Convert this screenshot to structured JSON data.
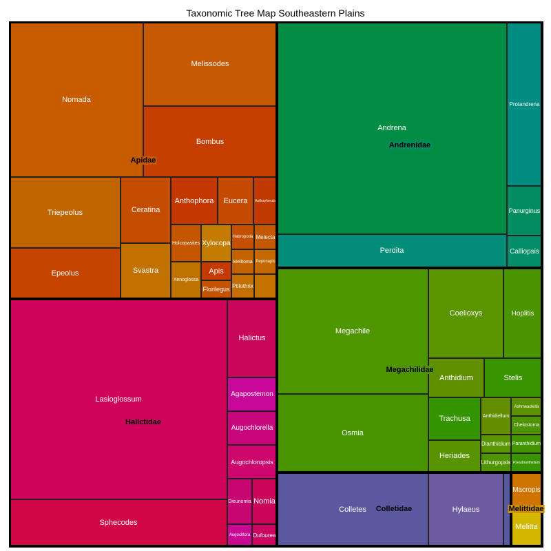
{
  "chart_data": {
    "type": "treemap",
    "title": "Taxonomic Tree Map Southeastern Plains",
    "families": [
      {
        "name": "Apidae",
        "color": "#c45a00",
        "genera": [
          {
            "name": "Nomada",
            "color": "#c85a00"
          },
          {
            "name": "Melissodes",
            "color": "#c55800"
          },
          {
            "name": "Bombus",
            "color": "#c43e00"
          },
          {
            "name": "Triepeolus",
            "color": "#c06400"
          },
          {
            "name": "Epeolus",
            "color": "#c44400"
          },
          {
            "name": "Ceratina",
            "color": "#c44c00"
          },
          {
            "name": "Svastra",
            "color": "#c17200"
          },
          {
            "name": "Anthophora",
            "color": "#c43800"
          },
          {
            "name": "Eucera",
            "color": "#c44a00"
          },
          {
            "name": "Anthophorula",
            "color": "#c03a00"
          },
          {
            "name": "Holcopasites",
            "color": "#c45600"
          },
          {
            "name": "Xenoglossa",
            "color": "#c07200"
          },
          {
            "name": "Xylocopa",
            "color": "#c47c00"
          },
          {
            "name": "Apis",
            "color": "#c43a00"
          },
          {
            "name": "Florilegus",
            "color": "#c45200"
          },
          {
            "name": "Habropoda",
            "color": "#c45000"
          },
          {
            "name": "Melecta",
            "color": "#c45800"
          },
          {
            "name": "Melitoma",
            "color": "#c46200"
          },
          {
            "name": "Peponapis",
            "color": "#c46800"
          },
          {
            "name": "Ptilothrix",
            "color": "#c46e00"
          },
          {
            "name": "",
            "color": "#c47200"
          }
        ]
      },
      {
        "name": "Andrenidae",
        "color": "#028c60",
        "genera": [
          {
            "name": "Andrena",
            "color": "#028c44"
          },
          {
            "name": "Perdita",
            "color": "#038c78"
          },
          {
            "name": "Protandrena",
            "color": "#008c80"
          },
          {
            "name": "Panurginus",
            "color": "#028c60"
          },
          {
            "name": "Calliopsis",
            "color": "#028c68"
          }
        ]
      },
      {
        "name": "Halictidae",
        "color": "#cc0660",
        "genera": [
          {
            "name": "Lasioglossum",
            "color": "#d0045a"
          },
          {
            "name": "Sphecodes",
            "color": "#d00646"
          },
          {
            "name": "Halictus",
            "color": "#c8065a"
          },
          {
            "name": "Agapostemon",
            "color": "#c80898"
          },
          {
            "name": "Augochlorella",
            "color": "#c8067c"
          },
          {
            "name": "Augochloropsis",
            "color": "#cc066c"
          },
          {
            "name": "Dieunomia",
            "color": "#c80672"
          },
          {
            "name": "Nomia",
            "color": "#cc0658"
          },
          {
            "name": "Augochlora",
            "color": "#c80890"
          },
          {
            "name": "Dufourea",
            "color": "#cc0660"
          }
        ]
      },
      {
        "name": "Megachilidae",
        "color": "#4e9400",
        "genera": [
          {
            "name": "Megachile",
            "color": "#4e9600"
          },
          {
            "name": "Osmia",
            "color": "#489400"
          },
          {
            "name": "Coelioxys",
            "color": "#5a9400"
          },
          {
            "name": "Hoplitis",
            "color": "#4a9400"
          },
          {
            "name": "Anthidium",
            "color": "#609000"
          },
          {
            "name": "Stelis",
            "color": "#389400"
          },
          {
            "name": "Trachusa",
            "color": "#349400"
          },
          {
            "name": "Heriades",
            "color": "#589400"
          },
          {
            "name": "Anthidiellum",
            "color": "#648e00"
          },
          {
            "name": "Dianthidium",
            "color": "#5a9400"
          },
          {
            "name": "Lithurgopsis",
            "color": "#509400"
          },
          {
            "name": "Ashmeadiella",
            "color": "#5c9200"
          },
          {
            "name": "Chelostoma",
            "color": "#4e9400"
          },
          {
            "name": "Paranthidium",
            "color": "#449400"
          },
          {
            "name": "Pseudoanthidium",
            "color": "#3a9400"
          }
        ]
      },
      {
        "name": "Colletidae",
        "color": "#5c58a0",
        "genera": [
          {
            "name": "Colletes",
            "color": "#5c58a0"
          },
          {
            "name": "Hylaeus",
            "color": "#6c5aa0"
          },
          {
            "name": "",
            "color": "#5858a0"
          }
        ]
      },
      {
        "name": "Melittidae",
        "color": "#d09000",
        "genera": [
          {
            "name": "Macropis",
            "color": "#d07400"
          },
          {
            "name": "Melitta",
            "color": "#d4b800"
          }
        ]
      }
    ]
  }
}
